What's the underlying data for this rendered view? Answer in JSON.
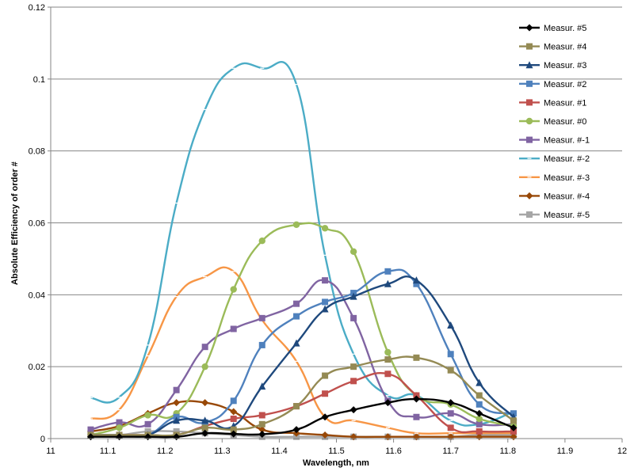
{
  "chart_data": {
    "type": "line",
    "smooth": true,
    "xlabel": "Wavelength, nm",
    "ylabel": "Absolute Efficiency of order #",
    "xlim": [
      11,
      12
    ],
    "ylim": [
      0,
      0.12
    ],
    "xticks": [
      "11",
      "11.1",
      "11.2",
      "11.3",
      "11.4",
      "11.5",
      "11.6",
      "11.7",
      "11.8",
      "11.9",
      "12"
    ],
    "yticks": [
      "0",
      "0.02",
      "0.04",
      "0.06",
      "0.08",
      "0.1",
      "0.12"
    ],
    "grid": "horizontal",
    "legend_position": "top-right",
    "x": [
      11.07,
      11.12,
      11.17,
      11.22,
      11.27,
      11.32,
      11.37,
      11.43,
      11.48,
      11.53,
      11.59,
      11.64,
      11.7,
      11.75,
      11.81
    ],
    "series": [
      {
        "name": "Measur. #5",
        "color": "#000000",
        "marker": "diamond",
        "values": [
          0.0005,
          0.0005,
          0.0005,
          0.0005,
          0.0015,
          0.0013,
          0.0012,
          0.0025,
          0.006,
          0.008,
          0.01,
          0.011,
          0.01,
          0.007,
          0.003
        ]
      },
      {
        "name": "Measur. #4",
        "color": "#948A54",
        "marker": "square",
        "values": [
          0.001,
          0.001,
          0.001,
          0.001,
          0.003,
          0.0025,
          0.004,
          0.009,
          0.0175,
          0.02,
          0.022,
          0.0225,
          0.019,
          0.012,
          0.005
        ]
      },
      {
        "name": "Measur. #3",
        "color": "#1F497D",
        "marker": "triangle",
        "values": [
          0.001,
          0.001,
          0.001,
          0.005,
          0.005,
          0.0035,
          0.0145,
          0.0265,
          0.036,
          0.0395,
          0.043,
          0.044,
          0.0315,
          0.0155,
          0.006
        ]
      },
      {
        "name": "Measur. #2",
        "color": "#4F81BD",
        "marker": "square",
        "values": [
          0.001,
          0.001,
          0.001,
          0.006,
          0.0045,
          0.0105,
          0.026,
          0.034,
          0.038,
          0.0405,
          0.0465,
          0.043,
          0.0235,
          0.0095,
          0.007
        ]
      },
      {
        "name": "Measur. #1",
        "color": "#C0504D",
        "marker": "square",
        "values": [
          0.001,
          0.001,
          0.001,
          0.001,
          0.0035,
          0.0055,
          0.0065,
          0.009,
          0.0125,
          0.016,
          0.018,
          0.012,
          0.003,
          0.002,
          0.002
        ]
      },
      {
        "name": "Measur. #0",
        "color": "#9BBB59",
        "marker": "circle",
        "values": [
          0.001,
          0.003,
          0.0065,
          0.007,
          0.02,
          0.0415,
          0.055,
          0.0595,
          0.0585,
          0.052,
          0.024,
          0.012,
          0.0095,
          0.0055,
          0.0035
        ]
      },
      {
        "name": "Measur. #-1",
        "color": "#8064A2",
        "marker": "square",
        "values": [
          0.0025,
          0.0045,
          0.004,
          0.0135,
          0.0255,
          0.0305,
          0.0335,
          0.0375,
          0.044,
          0.0335,
          0.0105,
          0.006,
          0.007,
          0.004,
          0.004
        ]
      },
      {
        "name": "Measur. #-2",
        "color": "#4BACC6",
        "marker": "dash",
        "values": [
          0.0113,
          0.0115,
          0.026,
          0.0655,
          0.0915,
          0.103,
          0.103,
          0.0985,
          0.051,
          0.0235,
          0.012,
          0.012,
          0.005,
          0.004,
          0.0075
        ]
      },
      {
        "name": "Measur. #-3",
        "color": "#F79646",
        "marker": "dash",
        "values": [
          0.0055,
          0.008,
          0.023,
          0.0395,
          0.045,
          0.0465,
          0.033,
          0.0215,
          0.006,
          0.005,
          0.003,
          0.0015,
          0.0015,
          0.0015,
          0.0015
        ]
      },
      {
        "name": "Measur. #-4",
        "color": "#984807",
        "marker": "diamond",
        "values": [
          0.002,
          0.0035,
          0.007,
          0.01,
          0.01,
          0.0075,
          0.0025,
          0.0015,
          0.001,
          0.0005,
          0.0005,
          0.0005,
          0.0005,
          0.0005,
          0.0005
        ]
      },
      {
        "name": "Measur. #-5",
        "color": "#A6A6A6",
        "marker": "square",
        "values": [
          0.001,
          0.001,
          0.002,
          0.002,
          0.0015,
          0.001,
          0.0005,
          0.0005,
          0.0005,
          0.0005,
          0.0005,
          0.0005,
          0.0005,
          0.001,
          0.001
        ]
      }
    ]
  }
}
